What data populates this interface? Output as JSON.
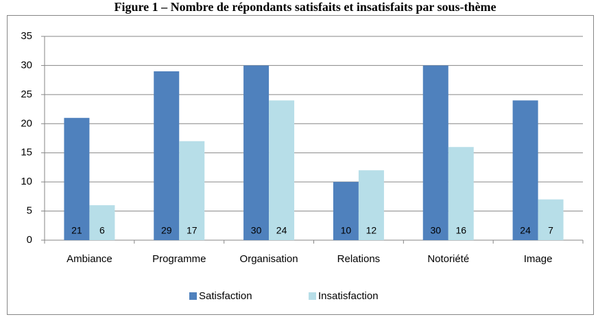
{
  "chart_data": {
    "type": "bar",
    "title": "Figure 1 – Nombre de répondants satisfaits et insatisfaits par sous-thème",
    "categories": [
      "Ambiance",
      "Programme",
      "Organisation",
      "Relations",
      "Notoriété",
      "Image"
    ],
    "series": [
      {
        "name": "Satisfaction",
        "color": "#4f81bd",
        "values": [
          21,
          29,
          30,
          10,
          30,
          24
        ]
      },
      {
        "name": "Insatisfaction",
        "color": "#b7dee8",
        "values": [
          6,
          17,
          24,
          12,
          16,
          7
        ]
      }
    ],
    "ylim": [
      0,
      35
    ],
    "yticks": [
      0,
      5,
      10,
      15,
      20,
      25,
      30,
      35
    ],
    "grid": true,
    "legend": "bottom"
  }
}
